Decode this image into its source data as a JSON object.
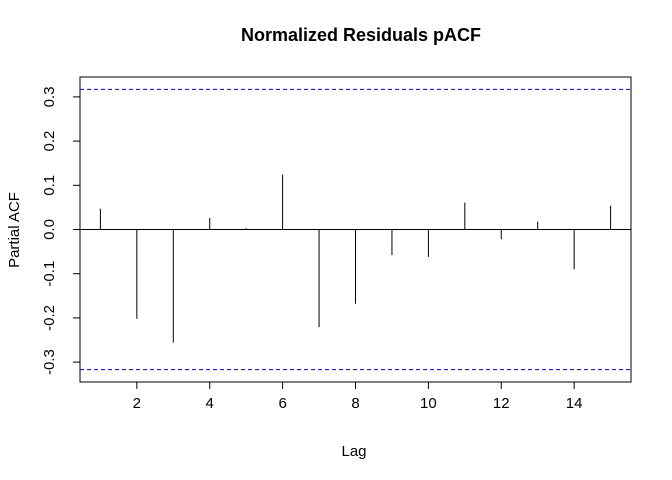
{
  "chart_data": {
    "type": "bar",
    "title": "Normalized Residuals pACF",
    "xlabel": "Lag",
    "ylabel": "Partial ACF",
    "x": [
      1,
      2,
      3,
      4,
      5,
      6,
      7,
      8,
      9,
      10,
      11,
      12,
      13,
      14,
      15
    ],
    "values": [
      0.047,
      -0.202,
      -0.256,
      0.026,
      0.003,
      0.124,
      -0.221,
      -0.168,
      -0.058,
      -0.062,
      0.061,
      -0.022,
      0.018,
      -0.09,
      0.054
    ],
    "confidence_bound": 0.317,
    "xlim": [
      0.44,
      15.56
    ],
    "ylim": [
      -0.345,
      0.345
    ],
    "xticks": [
      2,
      4,
      6,
      8,
      10,
      12,
      14
    ],
    "yticks": [
      -0.3,
      -0.2,
      -0.1,
      0.0,
      0.1,
      0.2,
      0.3
    ],
    "xtick_labels": [
      "2",
      "4",
      "6",
      "8",
      "10",
      "12",
      "14"
    ],
    "ytick_labels": [
      "-0.3",
      "-0.2",
      "-0.1",
      "0.0",
      "0.1",
      "0.2",
      "0.3"
    ],
    "colors": {
      "bars": "#000000",
      "confidence_lines": "#0000cc",
      "zero_line": "#000000"
    },
    "grid": false,
    "legend": "none"
  }
}
